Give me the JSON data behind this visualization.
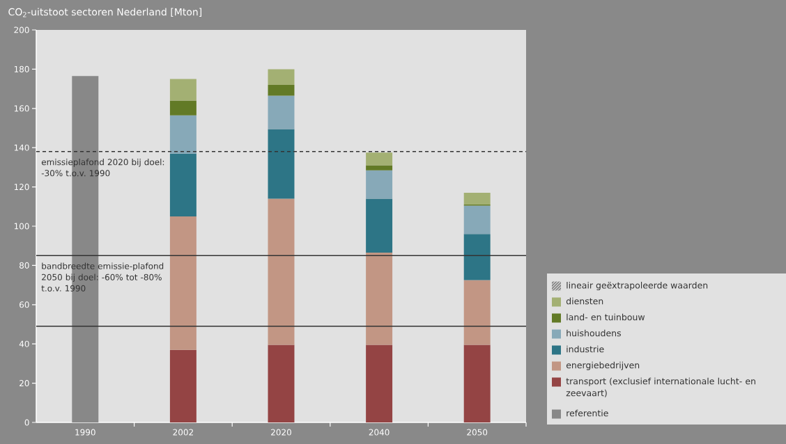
{
  "chart_data": {
    "type": "bar",
    "stacked": true,
    "title": "CO$_{2}$-uitstoot sectoren Nederland [Mton]",
    "categories": [
      "1990",
      "2002",
      "2020",
      "2040",
      "2050"
    ],
    "series": [
      {
        "name": "referentie",
        "color": "#888888",
        "values": [
          176.5,
          null,
          null,
          null,
          null
        ]
      },
      {
        "name": "transport (exclusief internationale lucht- en zeevaart)",
        "color": "#944444",
        "values": [
          null,
          37,
          39.5,
          39.5,
          39.5
        ]
      },
      {
        "name": "energiebedrijven",
        "color": "#c29684",
        "values": [
          null,
          68,
          74.5,
          47,
          33
        ]
      },
      {
        "name": "industrie",
        "color": "#2d7586",
        "values": [
          null,
          32,
          35.5,
          27.5,
          23.5
        ]
      },
      {
        "name": "huishoudens",
        "color": "#87a9b8",
        "values": [
          null,
          19.5,
          17,
          14.5,
          14.5
        ]
      },
      {
        "name": "land- en tuinbouw",
        "color": "#627a26",
        "values": [
          null,
          7.5,
          5.5,
          2.5,
          0.5
        ]
      },
      {
        "name": "diensten",
        "color": "#a3b073",
        "values": [
          null,
          11,
          8,
          6.5,
          6
        ]
      }
    ],
    "ylim": [
      0,
      200
    ],
    "yticks": [
      0,
      20,
      40,
      60,
      80,
      100,
      120,
      140,
      160,
      180,
      200
    ],
    "ref_lines": [
      {
        "axis": "y",
        "value": 138,
        "color": "#333333",
        "line_style": "dashed"
      },
      {
        "axis": "y",
        "value": 85,
        "color": "#333333",
        "line_style": "solid"
      },
      {
        "axis": "y",
        "value": 49,
        "color": "#333333",
        "line_style": "solid"
      }
    ],
    "annotations": [
      "lineair geëxtrapoleerde waarden",
      {
        "text": "emissieplafond 2020 bij doel: -30% t.o.v. 1990",
        "y": 138
      },
      {
        "text": "bandbreedte emissie-plafond 2050 bij doel: -60% tot -80% t.o.v. 1990",
        "y": 85
      }
    ],
    "legend": "bottom right",
    "grid": false
  }
}
